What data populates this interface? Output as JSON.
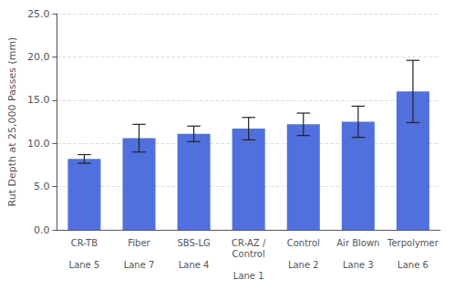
{
  "chart_data": {
    "type": "bar",
    "categories": [
      "CR-TB\n\nLane 5",
      "Fiber\n\nLane 7",
      "SBS-LG\n\nLane 4",
      "CR-AZ /\nControl\n\nLane 1",
      "Control\n\nLane 2",
      "Air Blown\n\nLane 3",
      "Terpolymer\n\nLane 6"
    ],
    "values": [
      8.2,
      10.6,
      11.1,
      11.7,
      12.2,
      12.5,
      16.0
    ],
    "errors": [
      0.5,
      1.6,
      0.9,
      1.3,
      1.3,
      1.8,
      3.6
    ],
    "ylabel": "Rut Depth at 25,000 Passes (mm)",
    "ylim": [
      0.0,
      25.0
    ],
    "yticks": [
      {
        "value": 0,
        "label": "0.0"
      },
      {
        "value": 5,
        "label": "5.0"
      },
      {
        "value": 10,
        "label": "10.0"
      },
      {
        "value": 15,
        "label": "15.0"
      },
      {
        "value": 20,
        "label": "20.0"
      },
      {
        "value": 25,
        "label": "25.0"
      }
    ],
    "grid": true
  }
}
